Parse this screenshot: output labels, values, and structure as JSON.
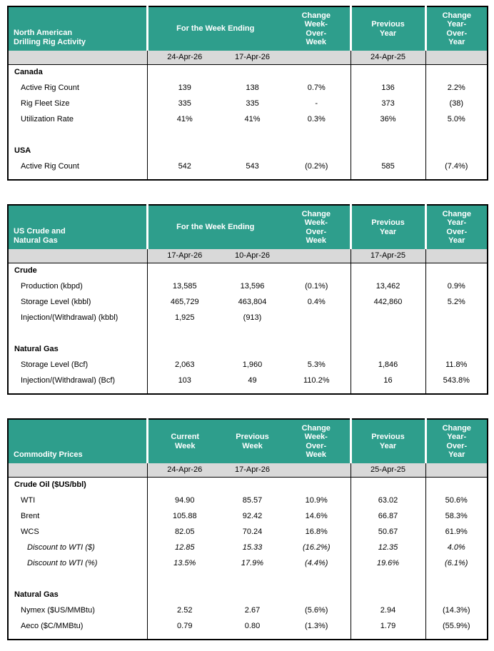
{
  "colors": {
    "header_bg": "#2E9E8C",
    "header_text": "#FFFFFF",
    "subheader_bg": "#D9D9D9",
    "border": "#000000",
    "text": "#000000"
  },
  "tables": [
    {
      "id": "rig-activity",
      "title": "North American\nDrilling Rig Activity",
      "header": {
        "week_ending": "For the Week Ending",
        "change_wow": "Change\nWeek-\nOver-\nWeek",
        "previous_year": "Previous\nYear",
        "change_yoy": "Change\nYear-\nOver-\nYear"
      },
      "dates": [
        "24-Apr-26",
        "17-Apr-26",
        "",
        "24-Apr-25",
        ""
      ],
      "rows": [
        {
          "label": "Canada",
          "style": "section",
          "indent": 0,
          "values": [
            "",
            "",
            "",
            "",
            ""
          ]
        },
        {
          "label": "Active Rig Count",
          "indent": 1,
          "values": [
            "139",
            "138",
            "0.7%",
            "136",
            "2.2%"
          ]
        },
        {
          "label": "Rig Fleet Size",
          "indent": 1,
          "values": [
            "335",
            "335",
            "-",
            "373",
            "(38)"
          ]
        },
        {
          "label": "Utilization Rate",
          "indent": 1,
          "values": [
            "41%",
            "41%",
            "0.3%",
            "36%",
            "5.0%"
          ]
        },
        {
          "label": "",
          "indent": 0,
          "values": [
            "",
            "",
            "",
            "",
            ""
          ]
        },
        {
          "label": "USA",
          "style": "section",
          "indent": 0,
          "values": [
            "",
            "",
            "",
            "",
            ""
          ]
        },
        {
          "label": "Active Rig Count",
          "indent": 1,
          "values": [
            "542",
            "543",
            "(0.2%)",
            "585",
            "(7.4%)"
          ]
        }
      ]
    },
    {
      "id": "crude-natgas",
      "title": "US Crude and\nNatural Gas",
      "header": {
        "week_ending": "For the Week Ending",
        "change_wow": "Change\nWeek-\nOver-\nWeek",
        "previous_year": "Previous\nYear",
        "change_yoy": "Change\nYear-\nOver-\nYear"
      },
      "dates": [
        "17-Apr-26",
        "10-Apr-26",
        "",
        "17-Apr-25",
        ""
      ],
      "rows": [
        {
          "label": "Crude",
          "style": "section",
          "indent": 0,
          "values": [
            "",
            "",
            "",
            "",
            ""
          ]
        },
        {
          "label": "Production (kbpd)",
          "indent": 1,
          "values": [
            "13,585",
            "13,596",
            "(0.1%)",
            "13,462",
            "0.9%"
          ]
        },
        {
          "label": "Storage Level (kbbl)",
          "indent": 1,
          "values": [
            "465,729",
            "463,804",
            "0.4%",
            "442,860",
            "5.2%"
          ]
        },
        {
          "label": "Injection/(Withdrawal) (kbbl)",
          "indent": 1,
          "values": [
            "1,925",
            "(913)",
            "",
            "",
            ""
          ]
        },
        {
          "label": "",
          "indent": 0,
          "values": [
            "",
            "",
            "",
            "",
            ""
          ]
        },
        {
          "label": "Natural Gas",
          "style": "section",
          "indent": 0,
          "values": [
            "",
            "",
            "",
            "",
            ""
          ]
        },
        {
          "label": "Storage Level (Bcf)",
          "indent": 1,
          "values": [
            "2,063",
            "1,960",
            "5.3%",
            "1,846",
            "11.8%"
          ]
        },
        {
          "label": "Injection/(Withdrawal) (Bcf)",
          "indent": 1,
          "values": [
            "103",
            "49",
            "110.2%",
            "16",
            "543.8%"
          ]
        }
      ]
    },
    {
      "id": "commodity-prices",
      "title": "Commodity Prices",
      "header": {
        "current_week": "Current\nWeek",
        "previous_week": "Previous\nWeek",
        "change_wow": "Change\nWeek-\nOver-\nWeek",
        "previous_year": "Previous\nYear",
        "change_yoy": "Change\nYear-\nOver-\nYear"
      },
      "dates": [
        "24-Apr-26",
        "17-Apr-26",
        "",
        "25-Apr-25",
        ""
      ],
      "rows": [
        {
          "label": "Crude Oil ($US/bbl)",
          "style": "section",
          "indent": 0,
          "values": [
            "",
            "",
            "",
            "",
            ""
          ]
        },
        {
          "label": "WTI",
          "indent": 1,
          "values": [
            "94.90",
            "85.57",
            "10.9%",
            "63.02",
            "50.6%"
          ]
        },
        {
          "label": "Brent",
          "indent": 1,
          "values": [
            "105.88",
            "92.42",
            "14.6%",
            "66.87",
            "58.3%"
          ]
        },
        {
          "label": "WCS",
          "indent": 1,
          "values": [
            "82.05",
            "70.24",
            "16.8%",
            "50.67",
            "61.9%"
          ]
        },
        {
          "label": "Discount to WTI ($)",
          "indent": 2,
          "italic": true,
          "values": [
            "12.85",
            "15.33",
            "(16.2%)",
            "12.35",
            "4.0%"
          ]
        },
        {
          "label": "Discount to WTI (%)",
          "indent": 2,
          "italic": true,
          "values": [
            "13.5%",
            "17.9%",
            "(4.4%)",
            "19.6%",
            "(6.1%)"
          ]
        },
        {
          "label": "",
          "indent": 0,
          "values": [
            "",
            "",
            "",
            "",
            ""
          ]
        },
        {
          "label": "Natural Gas",
          "style": "section",
          "indent": 0,
          "values": [
            "",
            "",
            "",
            "",
            ""
          ]
        },
        {
          "label": "Nymex ($US/MMBtu)",
          "indent": 1,
          "values": [
            "2.52",
            "2.67",
            "(5.6%)",
            "2.94",
            "(14.3%)"
          ]
        },
        {
          "label": "Aeco ($C/MMBtu)",
          "indent": 1,
          "values": [
            "0.79",
            "0.80",
            "(1.3%)",
            "1.79",
            "(55.9%)"
          ]
        }
      ]
    }
  ]
}
